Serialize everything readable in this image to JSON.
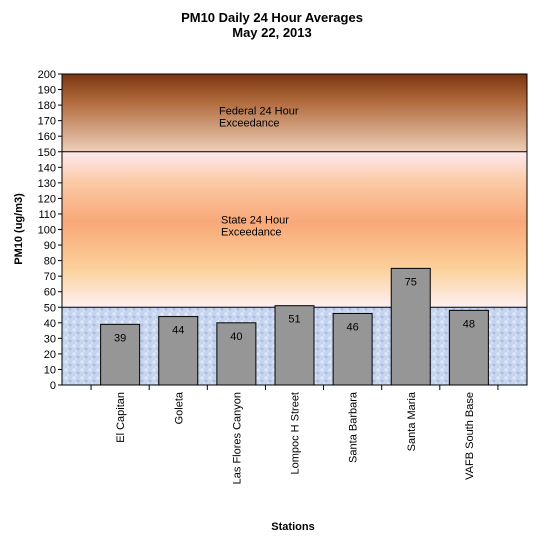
{
  "chart_data": {
    "type": "bar",
    "title": "PM10 Daily 24 Hour Averages",
    "subtitle": "May 22, 2013",
    "xlabel": "Stations",
    "ylabel": "PM10 (ug/m3)",
    "ylim": [
      0,
      200
    ],
    "ytick_step": 10,
    "categories": [
      "El Capitan",
      "Goleta",
      "Las Flores Canyon",
      "Lompoc H Street",
      "Santa Barbara",
      "Santa Maria",
      "VAFB South Base"
    ],
    "values": [
      39,
      44,
      40,
      51,
      46,
      75,
      48
    ],
    "data_labels": [
      "39",
      "44",
      "40",
      "51",
      "46",
      "75",
      "48"
    ],
    "bar_color": "#969696",
    "bands": [
      {
        "from": 0,
        "to": 50,
        "label": "",
        "color": "#c8d6f0"
      },
      {
        "from": 50,
        "to": 150,
        "label": "State 24 Hour Exceedance",
        "color": "#f8b07a"
      },
      {
        "from": 150,
        "to": 200,
        "label": "Federal 24 Hour Exceedance",
        "color": "#8a4216"
      }
    ],
    "grid": false,
    "legend": "none"
  }
}
